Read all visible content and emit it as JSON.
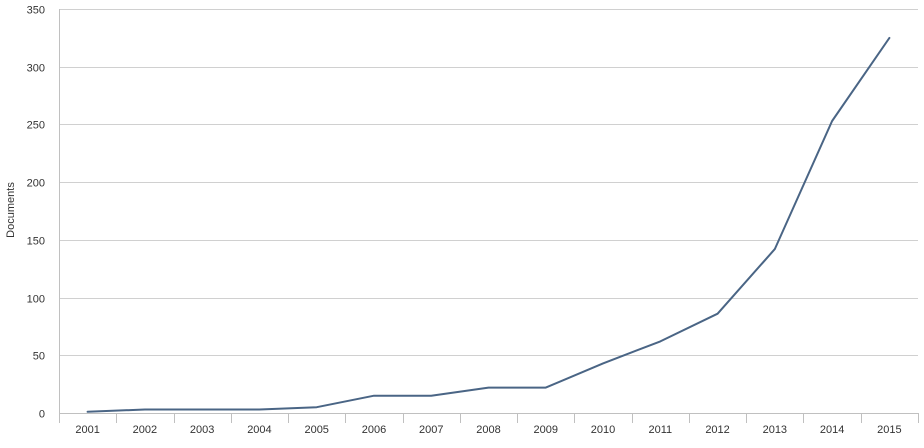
{
  "chart_data": {
    "type": "line",
    "title": "",
    "xlabel": "",
    "ylabel": "Documents",
    "categories": [
      "2001",
      "2002",
      "2003",
      "2004",
      "2005",
      "2006",
      "2007",
      "2008",
      "2009",
      "2010",
      "2011",
      "2012",
      "2013",
      "2014",
      "2015"
    ],
    "series": [
      {
        "values": [
          1,
          3,
          3,
          3,
          5,
          15,
          15,
          22,
          22,
          43,
          62,
          86,
          142,
          253,
          325
        ],
        "color": "#4a6585"
      }
    ],
    "ylim": [
      0,
      350
    ],
    "yticks": [
      0,
      50,
      100,
      150,
      200,
      250,
      300,
      350
    ],
    "grid": true,
    "legend": "none"
  }
}
